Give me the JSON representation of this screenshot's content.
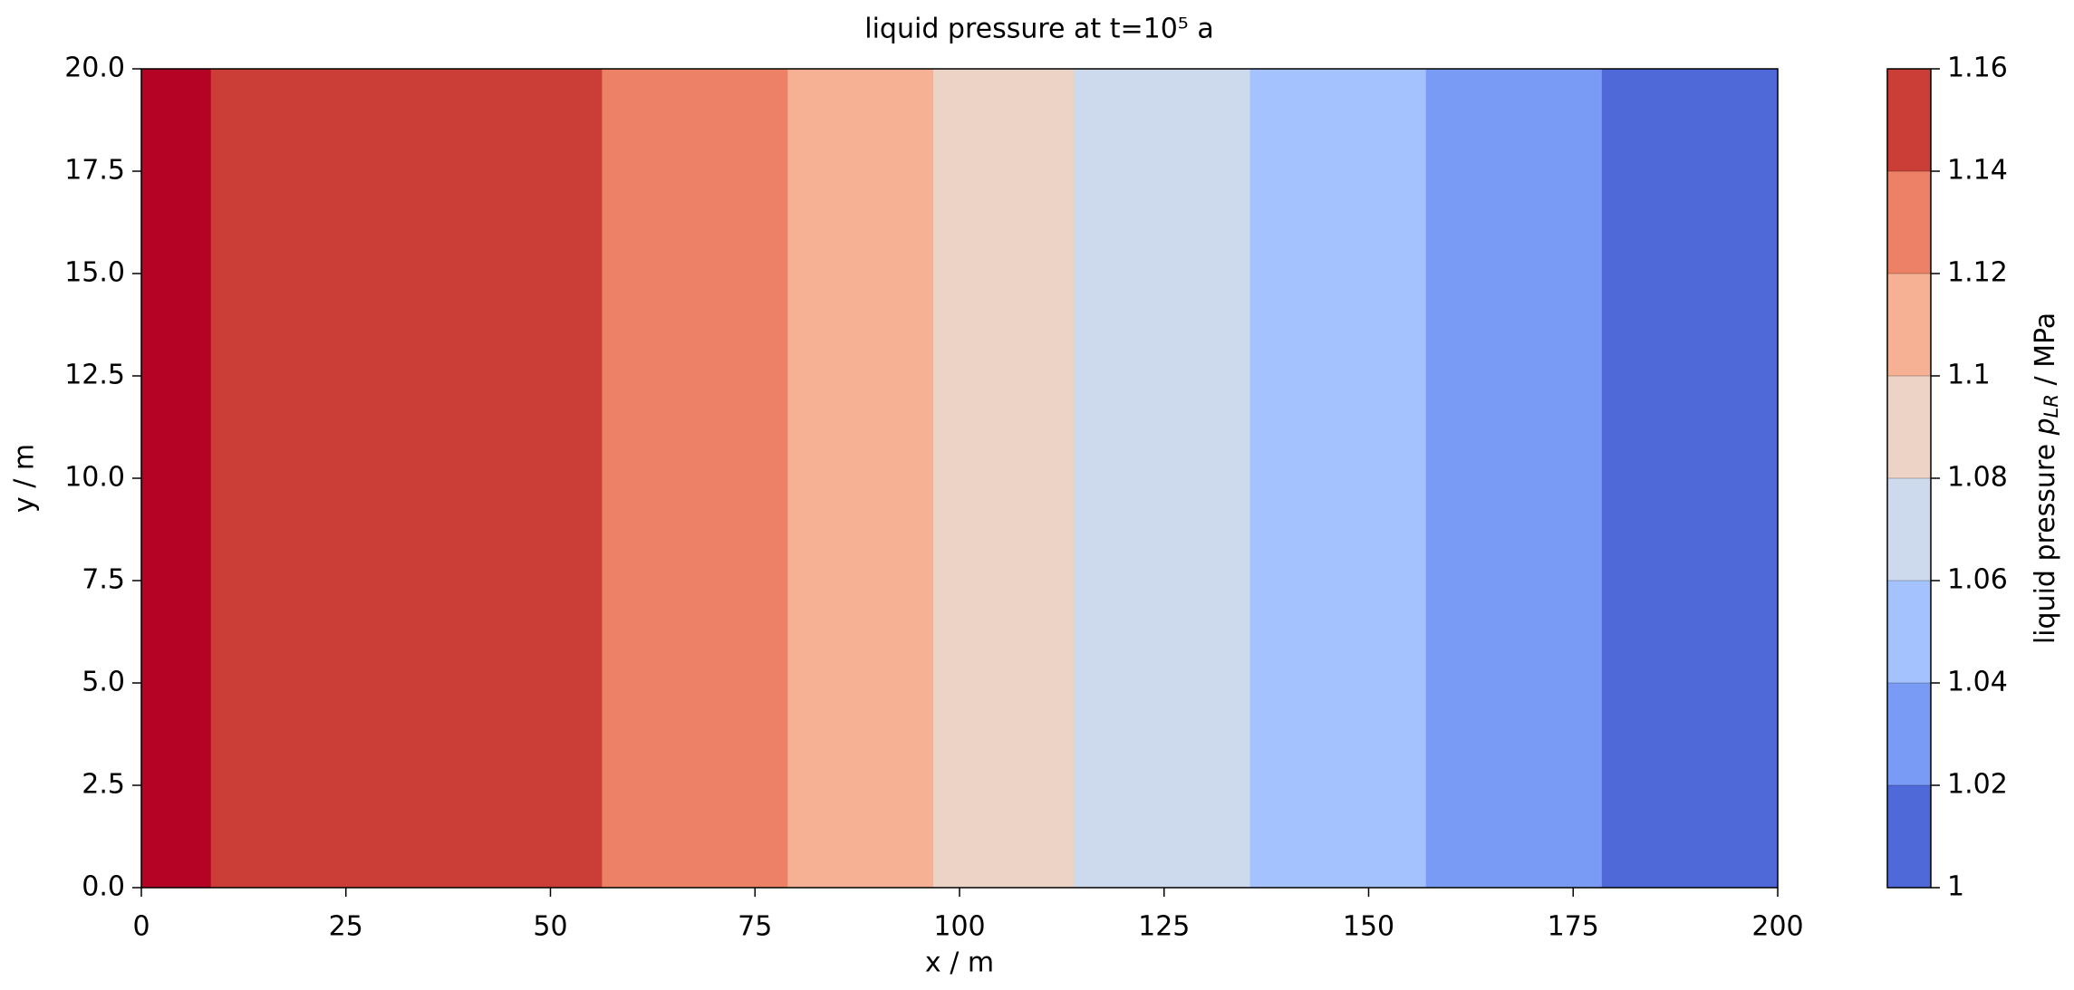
{
  "chart_data": {
    "type": "contourf",
    "title": "liquid pressure at t=10⁵ a",
    "xlabel": "x / m",
    "ylabel": "y / m",
    "colorbar_label": {
      "text": "liquid pressure ",
      "symbol": "p",
      "subscript": "LR",
      "unit": " / MPa"
    },
    "xlim": [
      0,
      200
    ],
    "ylim": [
      0,
      20
    ],
    "xticks": [
      0,
      25,
      50,
      75,
      100,
      125,
      150,
      175,
      200
    ],
    "yticks": [
      {
        "value": 0,
        "label": "0.0"
      },
      2.5,
      {
        "value": 5,
        "label": "5.0"
      },
      7.5,
      {
        "value": 10,
        "label": "10.0"
      },
      12.5,
      {
        "value": 15,
        "label": "15.0"
      },
      17.5,
      {
        "value": 20,
        "label": "20.0"
      }
    ],
    "levels": [
      1,
      1.02,
      1.04,
      1.06,
      1.08,
      1.1,
      1.12,
      1.14,
      1.16
    ],
    "level_colors": [
      "#4f69d9",
      "#7a9bf5",
      "#a4c2fd",
      "#cdd9ec",
      "#ecd3c6",
      "#f6b093",
      "#ed8166",
      "#cb3e37"
    ],
    "regions": [
      {
        "x": [
          0,
          8.5
        ],
        "range": [
          1.16,
          null
        ],
        "color": "#b40426"
      },
      {
        "x": [
          8.5,
          56.3
        ],
        "range": [
          1.14,
          1.16
        ],
        "color": "#cb3e37"
      },
      {
        "x": [
          56.3,
          79
        ],
        "range": [
          1.12,
          1.14
        ],
        "color": "#ed8166"
      },
      {
        "x": [
          79,
          96.8
        ],
        "range": [
          1.1,
          1.12
        ],
        "color": "#f6b093"
      },
      {
        "x": [
          96.8,
          114
        ],
        "range": [
          1.08,
          1.1
        ],
        "color": "#ecd3c6"
      },
      {
        "x": [
          114,
          135.5
        ],
        "range": [
          1.06,
          1.08
        ],
        "color": "#cdd9ec"
      },
      {
        "x": [
          135.5,
          157
        ],
        "range": [
          1.04,
          1.06
        ],
        "color": "#a4c2fd"
      },
      {
        "x": [
          157,
          178.5
        ],
        "range": [
          1.02,
          1.04
        ],
        "color": "#7a9bf5"
      },
      {
        "x": [
          178.5,
          200
        ],
        "range": [
          1,
          1.02
        ],
        "color": "#4f69d9"
      }
    ]
  }
}
